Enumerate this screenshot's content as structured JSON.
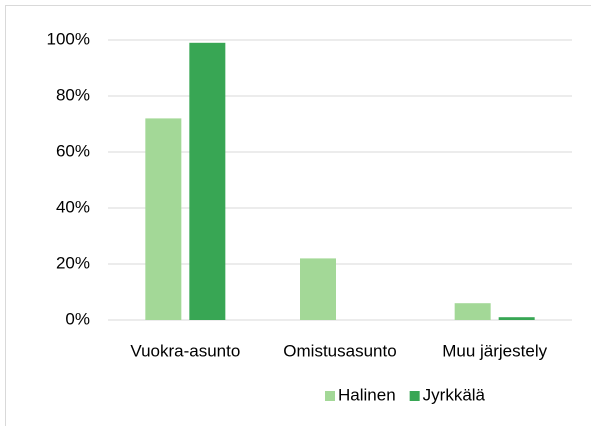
{
  "chart_data": {
    "type": "bar",
    "categories": [
      "Vuokra-asunto",
      "Omistusasunto",
      "Muu järjestely"
    ],
    "series": [
      {
        "name": "Halinen",
        "color": "#a3d897",
        "values": [
          72,
          22,
          6
        ]
      },
      {
        "name": "Jyrkkälä",
        "color": "#38a654",
        "values": [
          99,
          0,
          1
        ]
      }
    ],
    "ylim": [
      0,
      100
    ],
    "yticks": [
      {
        "value": 0,
        "label": "0%"
      },
      {
        "value": 20,
        "label": "20%"
      },
      {
        "value": 40,
        "label": "40%"
      },
      {
        "value": 60,
        "label": "60%"
      },
      {
        "value": 80,
        "label": "80%"
      },
      {
        "value": 100,
        "label": "100%"
      }
    ],
    "grid": true,
    "legend": "bottom"
  }
}
